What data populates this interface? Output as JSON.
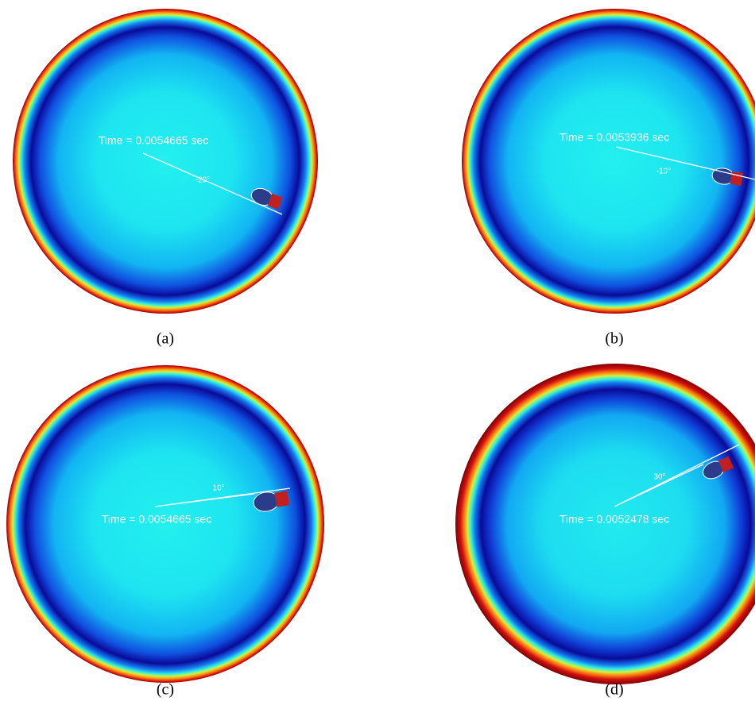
{
  "panels": [
    {
      "time": "Time = 0.0054665 sec",
      "angle": "-20°",
      "caption": "(a)"
    },
    {
      "time": "Time = 0.0053936 sec",
      "angle": "-10°",
      "caption": "(b)"
    },
    {
      "time": "Time = 0.0054665 sec",
      "angle": "10°",
      "caption": "(c)"
    },
    {
      "time": "Time = 0.0052478 sec",
      "angle": "30°",
      "caption": "(d)"
    }
  ]
}
